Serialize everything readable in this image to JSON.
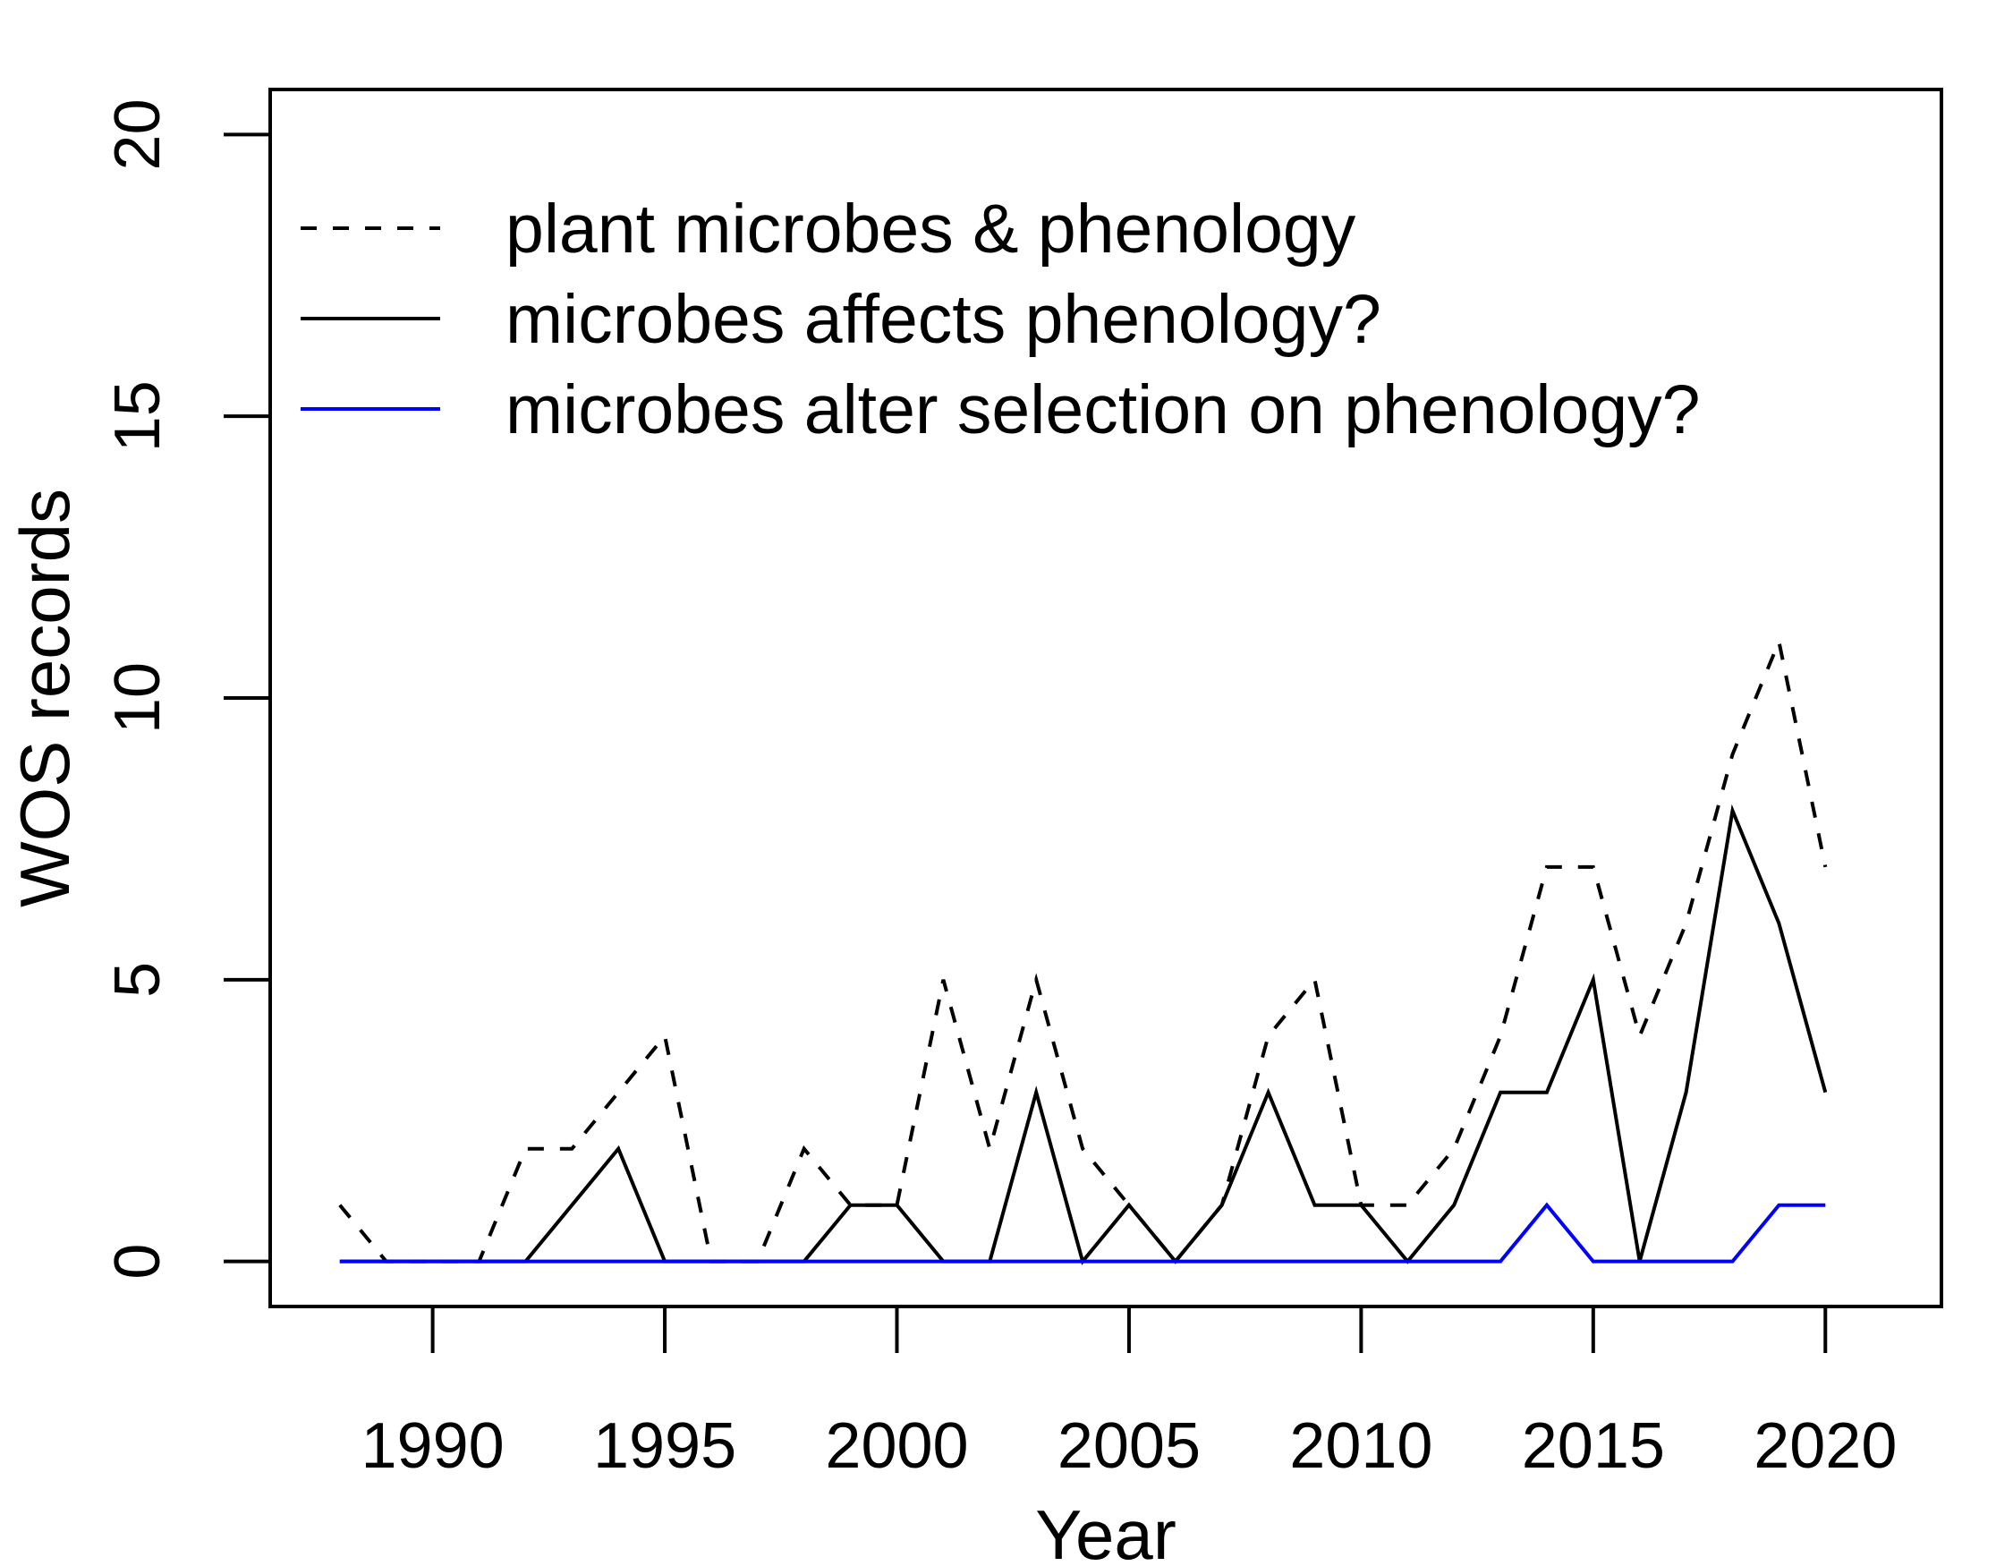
{
  "chart_data": {
    "type": "line",
    "title": "",
    "xlabel": "Year",
    "ylabel": "WOS records",
    "xlim": [
      1986.5,
      2022.5
    ],
    "ylim": [
      -0.8,
      20.8
    ],
    "xticks": [
      1990,
      1995,
      2000,
      2005,
      2010,
      2015,
      2020
    ],
    "xtick_labels": [
      "1990",
      "1995",
      "2000",
      "2005",
      "2010",
      "2015",
      "2020"
    ],
    "yticks": [
      0,
      5,
      10,
      15,
      20
    ],
    "ytick_labels": [
      "0",
      "5",
      "10",
      "15",
      "20"
    ],
    "grid": false,
    "legend_position": "top-left",
    "x": [
      1988,
      1989,
      1990,
      1991,
      1992,
      1993,
      1994,
      1995,
      1996,
      1997,
      1998,
      1999,
      2000,
      2001,
      2002,
      2003,
      2004,
      2005,
      2006,
      2007,
      2008,
      2009,
      2010,
      2011,
      2012,
      2013,
      2014,
      2015,
      2016,
      2017,
      2018,
      2019,
      2020
    ],
    "series": [
      {
        "name": "plant microbes & phenology",
        "color": "#000000",
        "dash": "dashed",
        "values": [
          1,
          0,
          0,
          0,
          2,
          2,
          3,
          4,
          0,
          0,
          2,
          1,
          1,
          5,
          2,
          5,
          2,
          1,
          0,
          1,
          4,
          5,
          1,
          1,
          2,
          4,
          7,
          7,
          4,
          6,
          9,
          11,
          7
        ]
      },
      {
        "name": "microbes affects phenology?",
        "color": "#000000",
        "dash": "solid",
        "values": [
          0,
          0,
          0,
          0,
          0,
          1,
          2,
          0,
          0,
          0,
          0,
          1,
          1,
          0,
          0,
          3,
          0,
          1,
          0,
          1,
          3,
          1,
          1,
          0,
          1,
          3,
          3,
          5,
          0,
          3,
          8,
          6,
          3
        ]
      },
      {
        "name": "microbes alter selection on phenology?",
        "color": "#0000ff",
        "dash": "solid",
        "values": [
          0,
          0,
          0,
          0,
          0,
          0,
          0,
          0,
          0,
          0,
          0,
          0,
          0,
          0,
          0,
          0,
          0,
          0,
          0,
          0,
          0,
          0,
          0,
          0,
          0,
          0,
          1,
          0,
          0,
          0,
          0,
          1,
          1
        ]
      }
    ]
  }
}
